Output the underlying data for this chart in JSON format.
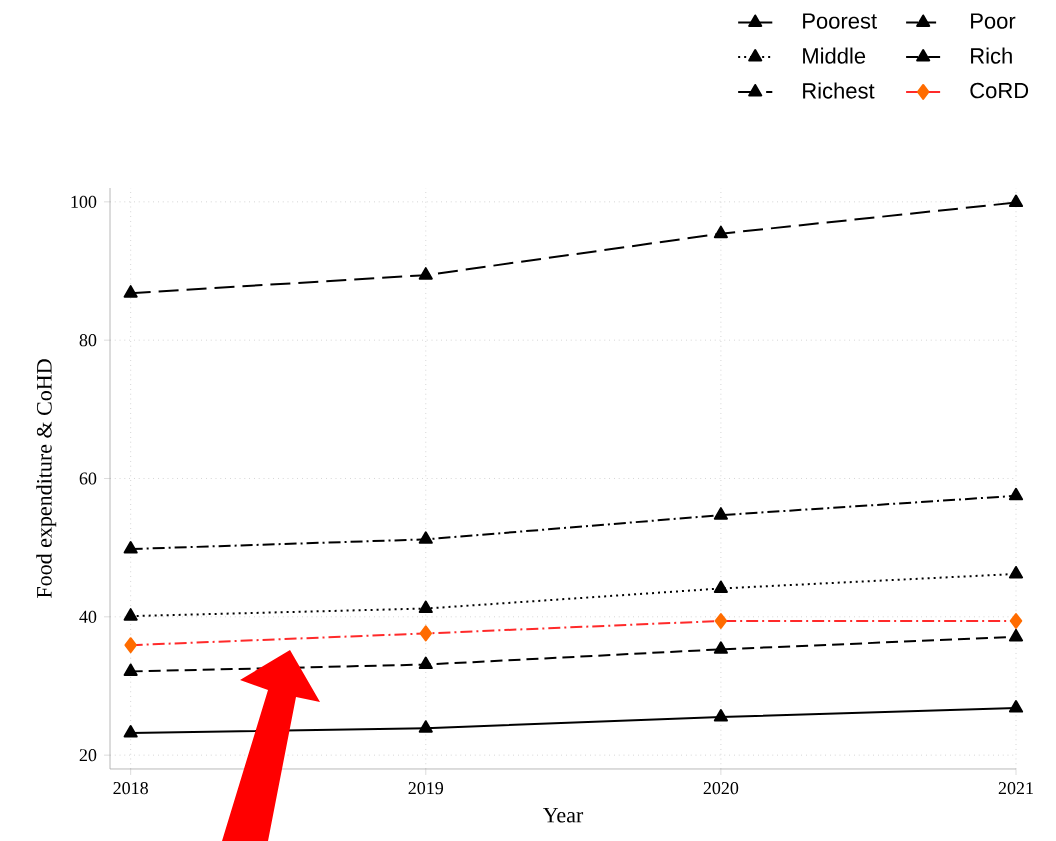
{
  "chart_data": {
    "type": "line",
    "xlabel": "Year",
    "ylabel": "Food expenditure & CoHD",
    "x": [
      2018,
      2019,
      2020,
      2021
    ],
    "series": [
      {
        "name": "Poorest",
        "color": "#000000",
        "line_style": "solid",
        "marker": "triangle",
        "values": [
          23.2,
          23.9,
          25.5,
          26.8
        ]
      },
      {
        "name": "Poor",
        "color": "#000000",
        "line_style": "dashed",
        "marker": "triangle",
        "values": [
          32.1,
          33.1,
          35.3,
          37.1
        ]
      },
      {
        "name": "Middle",
        "color": "#000000",
        "line_style": "dotted",
        "marker": "triangle",
        "values": [
          40.1,
          41.2,
          44.1,
          46.2
        ]
      },
      {
        "name": "Rich",
        "color": "#000000",
        "line_style": "dashdot",
        "marker": "triangle",
        "values": [
          49.8,
          51.2,
          54.7,
          57.5
        ]
      },
      {
        "name": "Richest",
        "color": "#000000",
        "line_style": "longdashed",
        "marker": "triangle",
        "values": [
          86.8,
          89.4,
          95.4,
          99.9
        ]
      },
      {
        "name": "CoRD",
        "color": "#ff2a2a",
        "line_style": "dashdot",
        "marker": "diamond",
        "values": [
          35.9,
          37.6,
          39.4,
          39.4
        ]
      }
    ],
    "xlim": [
      2017.93,
      2021
    ],
    "ylim": [
      18,
      102
    ],
    "xticks": [
      2018,
      2019,
      2020,
      2021
    ],
    "yticks": [
      20,
      40,
      60,
      80,
      100
    ],
    "grid": true,
    "legend": "top right"
  }
}
